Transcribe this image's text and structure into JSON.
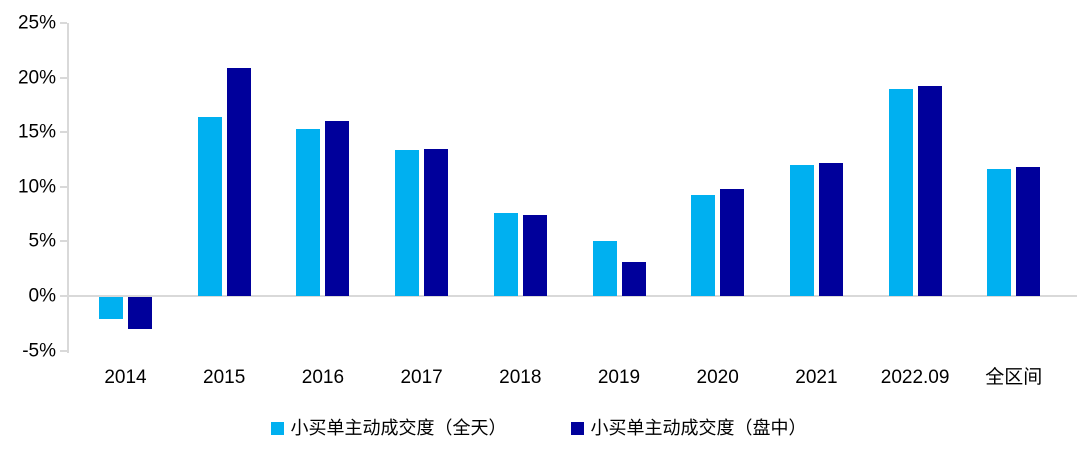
{
  "chart_data": {
    "type": "bar",
    "title": "",
    "xlabel": "",
    "ylabel": "",
    "categories": [
      "2014",
      "2015",
      "2016",
      "2017",
      "2018",
      "2019",
      "2020",
      "2021",
      "2022.09",
      "全区间"
    ],
    "series": [
      {
        "name": "小买单主动成交度（全天）",
        "color": "#00B0F0",
        "values": [
          -2.0,
          16.4,
          15.3,
          13.4,
          7.6,
          5.0,
          9.2,
          12.0,
          19.0,
          11.6
        ]
      },
      {
        "name": "小买单主动成交度（盘中）",
        "color": "#00009B",
        "values": [
          -2.9,
          20.9,
          16.0,
          13.5,
          7.4,
          3.1,
          9.8,
          12.2,
          19.2,
          11.8
        ]
      }
    ],
    "ylim": [
      -5,
      25
    ],
    "ytick_step": 5,
    "ytick_labels": [
      "25%",
      "20%",
      "15%",
      "10%",
      "5%",
      "0%",
      "-5%"
    ],
    "grid": false,
    "legend_position": "bottom",
    "axis_color": "#d9d9d9",
    "text_color": "#000000",
    "background_color": "#ffffff"
  }
}
